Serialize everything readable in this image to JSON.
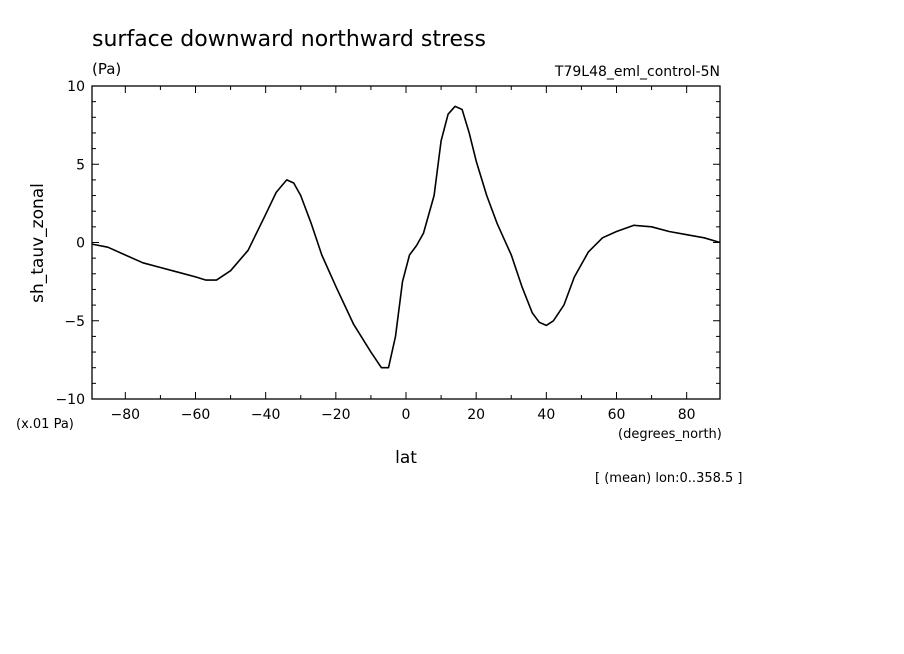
{
  "chart_data": {
    "type": "line",
    "title": "surface downward northward stress",
    "units": "(Pa)",
    "experiment": "T79L48_eml_control-5N",
    "ylabel": "sh_tauv_zonal",
    "xlabel": "lat",
    "x_units": "(degrees_north)",
    "y_scale_note": "(x.01 Pa)",
    "footnote": "[ (mean) lon:0..358.5 ]",
    "xlim": [
      -89.5,
      89.5
    ],
    "ylim": [
      -10,
      10
    ],
    "x_ticks": [
      -80,
      -60,
      -40,
      -20,
      0,
      20,
      40,
      60,
      80
    ],
    "y_ticks": [
      -10,
      -5,
      0,
      5,
      10
    ],
    "grid": false,
    "series": [
      {
        "color": "#000000",
        "x": [
          -89.5,
          -85,
          -80,
          -75,
          -70,
          -65,
          -60,
          -57,
          -54,
          -50,
          -45,
          -40,
          -37,
          -34,
          -32,
          -30,
          -27,
          -24,
          -20,
          -15,
          -10,
          -7,
          -5,
          -3,
          -1,
          1,
          3,
          5,
          8,
          10,
          12,
          14,
          16,
          18,
          20,
          23,
          26,
          30,
          33,
          36,
          38,
          40,
          42,
          45,
          48,
          52,
          56,
          60,
          65,
          70,
          75,
          80,
          85,
          89.5
        ],
        "y": [
          -0.1,
          -0.3,
          -0.8,
          -1.3,
          -1.6,
          -1.9,
          -2.2,
          -2.4,
          -2.4,
          -1.8,
          -0.5,
          1.8,
          3.2,
          4.0,
          3.8,
          3.0,
          1.2,
          -0.8,
          -2.8,
          -5.2,
          -7.0,
          -8.0,
          -8.0,
          -6.0,
          -2.5,
          -0.8,
          -0.2,
          0.6,
          3.0,
          6.5,
          8.2,
          8.7,
          8.5,
          7.0,
          5.2,
          3.0,
          1.2,
          -0.8,
          -2.8,
          -4.5,
          -5.1,
          -5.3,
          -5.0,
          -4.0,
          -2.2,
          -0.6,
          0.3,
          0.7,
          1.1,
          1.0,
          0.7,
          0.5,
          0.3,
          0.0
        ]
      }
    ]
  }
}
